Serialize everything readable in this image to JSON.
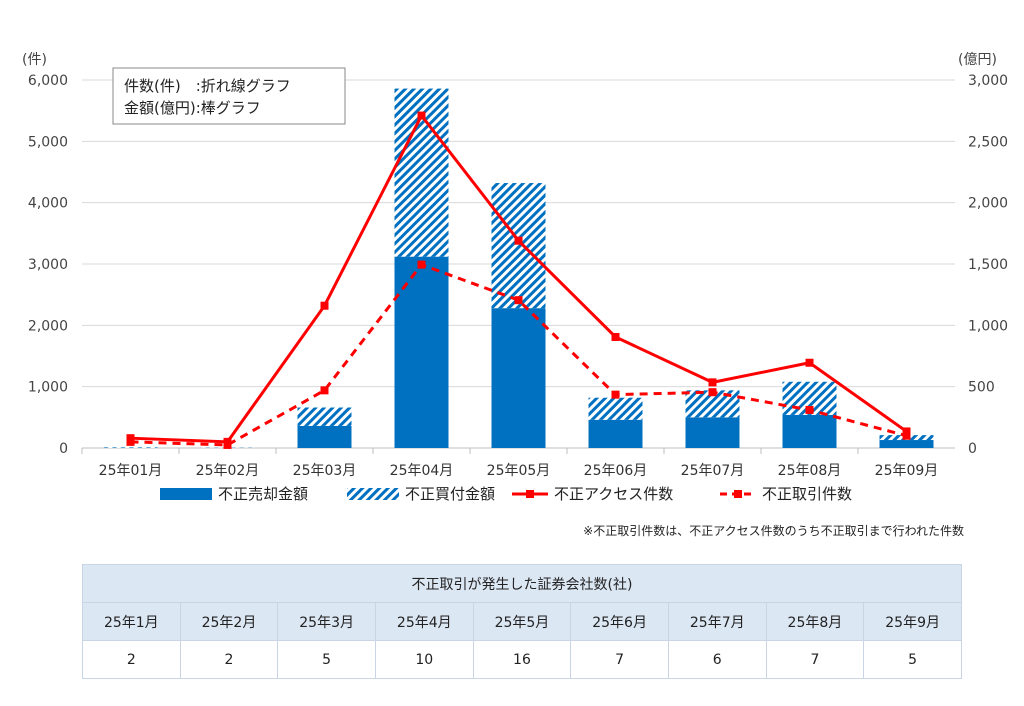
{
  "chart_data": {
    "type": "bar+line",
    "categories": [
      "25年01月",
      "25年02月",
      "25年03月",
      "25年04月",
      "25年05月",
      "25年06月",
      "25年07月",
      "25年08月",
      "25年09月"
    ],
    "ylabel_left": "(件)",
    "ylabel_right": "(億円)",
    "ylim_left": [
      0,
      6000
    ],
    "ylim_right": [
      0,
      3000
    ],
    "yticks_left": [
      "0",
      "1,000",
      "2,000",
      "3,000",
      "4,000",
      "5,000",
      "6,000"
    ],
    "yticks_right": [
      "0",
      "500",
      "1,000",
      "1,500",
      "2,000",
      "2,500",
      "3,000"
    ],
    "legend_box": [
      "件数(件)　:折れ線グラフ",
      "金額(億円):棒グラフ"
    ],
    "bar_series": [
      {
        "name": "不正売却金額",
        "color": "#0070c0",
        "pattern": "solid",
        "axis": "right",
        "values": [
          0,
          0,
          180,
          1560,
          1140,
          230,
          250,
          270,
          65
        ]
      },
      {
        "name": "不正買付金額",
        "color": "#0070c0",
        "pattern": "hatch",
        "axis": "right",
        "values": [
          5,
          2,
          150,
          1370,
          1020,
          180,
          220,
          270,
          40
        ]
      }
    ],
    "line_series": [
      {
        "name": "不正アクセス件数",
        "color": "#ff0000",
        "style": "solid",
        "axis": "left",
        "values": [
          160,
          100,
          2320,
          5420,
          3380,
          1810,
          1070,
          1390,
          270
        ]
      },
      {
        "name": "不正取引件数",
        "color": "#ff0000",
        "style": "dashed",
        "axis": "left",
        "values": [
          100,
          50,
          940,
          2990,
          2410,
          870,
          910,
          620,
          200
        ]
      }
    ],
    "legend_position": "bottom",
    "grid": true
  },
  "note": "※不正取引件数は、不正アクセス件数のうち不正取引まで行われた件数",
  "table": {
    "title": "不正取引が発生した証券会社数(社)",
    "headers": [
      "25年1月",
      "25年2月",
      "25年3月",
      "25年4月",
      "25年5月",
      "25年6月",
      "25年7月",
      "25年8月",
      "25年9月"
    ],
    "values": [
      "2",
      "2",
      "5",
      "10",
      "16",
      "7",
      "6",
      "7",
      "5"
    ]
  }
}
